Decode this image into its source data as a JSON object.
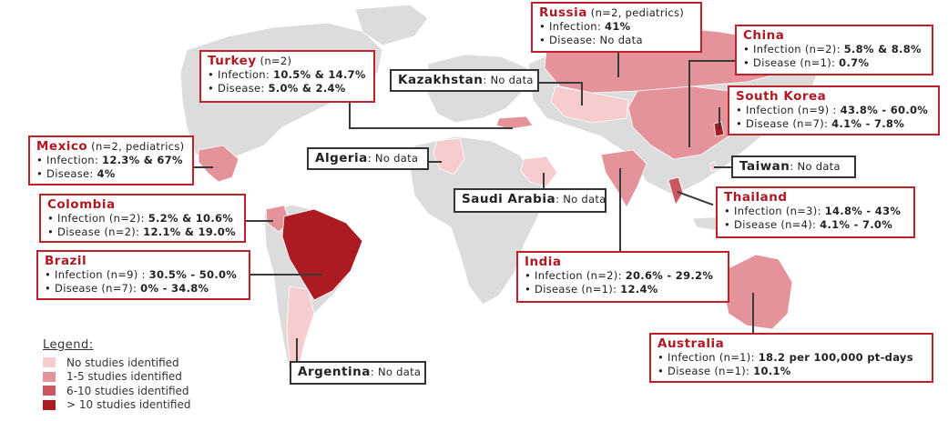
{
  "colors": {
    "no_studies": "#f6cccf",
    "one_to_five": "#e5939a",
    "six_to_ten": "#cc5660",
    "over_ten": "#ac1a22",
    "no_data_country": "#dcdcdc",
    "accent": "#c0202a"
  },
  "legend": {
    "title": "Legend:",
    "items": [
      {
        "label": "No studies identified",
        "color": "#f6cccf"
      },
      {
        "label": "1-5 studies identified",
        "color": "#e5939a"
      },
      {
        "label": "6-10 studies identified",
        "color": "#cc5660"
      },
      {
        "label": "> 10 studies identified",
        "color": "#ac1a22"
      }
    ]
  },
  "countries": {
    "russia": {
      "name": "Russia",
      "meta": "(n=2, pediatrics)",
      "inf_label": "• Infection: ",
      "inf_val": "41%",
      "dis_label": "• Disease:  No data",
      "dis_val": ""
    },
    "china": {
      "name": "China",
      "meta": "",
      "inf_label": "• Infection (n=2): ",
      "inf_val": "5.8% & 8.8%",
      "dis_label": "• Disease (n=1): ",
      "dis_val": "0.7%"
    },
    "turkey": {
      "name": "Turkey",
      "meta": "(n=2)",
      "inf_label": "• Infection: ",
      "inf_val": "10.5% & 14.7%",
      "dis_label": "• Disease: ",
      "dis_val": "5.0% & 2.4%"
    },
    "kazakhstan": {
      "name": "Kazakhstan",
      "suffix": ": No data"
    },
    "south_korea": {
      "name": "South Korea",
      "meta": "",
      "inf_label": "• Infection (n=9) : ",
      "inf_val": "43.8% - 60.0%",
      "dis_label": "• Disease (n=7): ",
      "dis_val": "4.1% - 7.8%"
    },
    "mexico": {
      "name": "Mexico",
      "meta": "(n=2, pediatrics)",
      "inf_label": "• Infection: ",
      "inf_val": "12.3% & 67%",
      "dis_label": "• Disease: ",
      "dis_val": "4%"
    },
    "algeria": {
      "name": "Algeria",
      "suffix": ": No data"
    },
    "taiwan": {
      "name": "Taiwan",
      "suffix": ": No data"
    },
    "colombia": {
      "name": "Colombia",
      "meta": "",
      "inf_label": "• Infection (n=2): ",
      "inf_val": "5.2% & 10.6%",
      "dis_label": "• Disease (n=2): ",
      "dis_val": "12.1% & 19.0%"
    },
    "saudi_arabia": {
      "name": "Saudi Arabia",
      "suffix": ": No data"
    },
    "thailand": {
      "name": "Thailand",
      "meta": "",
      "inf_label": "• Infection (n=3): ",
      "inf_val": "14.8% - 43%",
      "dis_label": "• Disease (n=4): ",
      "dis_val": "4.1% - 7.0%"
    },
    "brazil": {
      "name": "Brazil",
      "meta": "",
      "inf_label": "• Infection (n=9) : ",
      "inf_val": "30.5% - 50.0%",
      "dis_label": "• Disease (n=7): ",
      "dis_val": "0% - 34.8%"
    },
    "india": {
      "name": "India",
      "meta": "",
      "inf_label": "• Infection (n=2): ",
      "inf_val": "20.6% - 29.2%",
      "dis_label": "• Disease (n=1): ",
      "dis_val": "12.4%"
    },
    "australia": {
      "name": "Australia",
      "meta": "",
      "inf_label": "• Infection (n=1): ",
      "inf_val": "18.2 per 100,000 pt-days",
      "dis_label": "• Disease (n=1): ",
      "dis_val": "10.1%"
    },
    "argentina": {
      "name": "Argentina",
      "suffix": ": No data"
    }
  }
}
